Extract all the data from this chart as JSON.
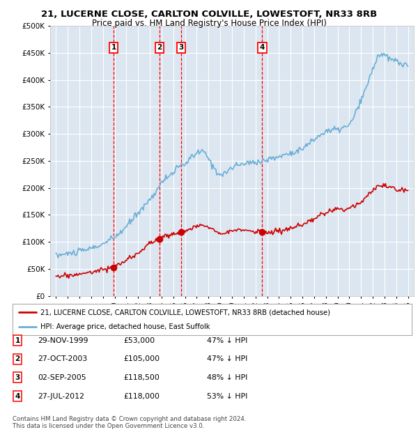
{
  "title_line1": "21, LUCERNE CLOSE, CARLTON COLVILLE, LOWESTOFT, NR33 8RB",
  "title_line2": "Price paid vs. HM Land Registry's House Price Index (HPI)",
  "legend_line1": "21, LUCERNE CLOSE, CARLTON COLVILLE, LOWESTOFT, NR33 8RB (detached house)",
  "legend_line2": "HPI: Average price, detached house, East Suffolk",
  "footer": "Contains HM Land Registry data © Crown copyright and database right 2024.\nThis data is licensed under the Open Government Licence v3.0.",
  "transactions": [
    {
      "num": 1,
      "date": "29-NOV-1999",
      "price": "£53,000",
      "pct": "47% ↓ HPI",
      "year": 1999.91
    },
    {
      "num": 2,
      "date": "27-OCT-2003",
      "price": "£105,000",
      "pct": "47% ↓ HPI",
      "year": 2003.82
    },
    {
      "num": 3,
      "date": "02-SEP-2005",
      "price": "£118,500",
      "pct": "48% ↓ HPI",
      "year": 2005.67
    },
    {
      "num": 4,
      "date": "27-JUL-2012",
      "price": "£118,000",
      "pct": "53% ↓ HPI",
      "year": 2012.57
    }
  ],
  "transaction_values": [
    53000,
    105000,
    118500,
    118000
  ],
  "ylim": [
    0,
    500000
  ],
  "yticks": [
    0,
    50000,
    100000,
    150000,
    200000,
    250000,
    300000,
    350000,
    400000,
    450000,
    500000
  ],
  "xlim_start": 1994.5,
  "xlim_end": 2025.5,
  "hpi_color": "#6baed6",
  "price_color": "#cc0000",
  "background_color": "#dce6f1",
  "grid_color": "#ffffff",
  "vline_color": "#ff0000",
  "marker_color": "#cc0000"
}
